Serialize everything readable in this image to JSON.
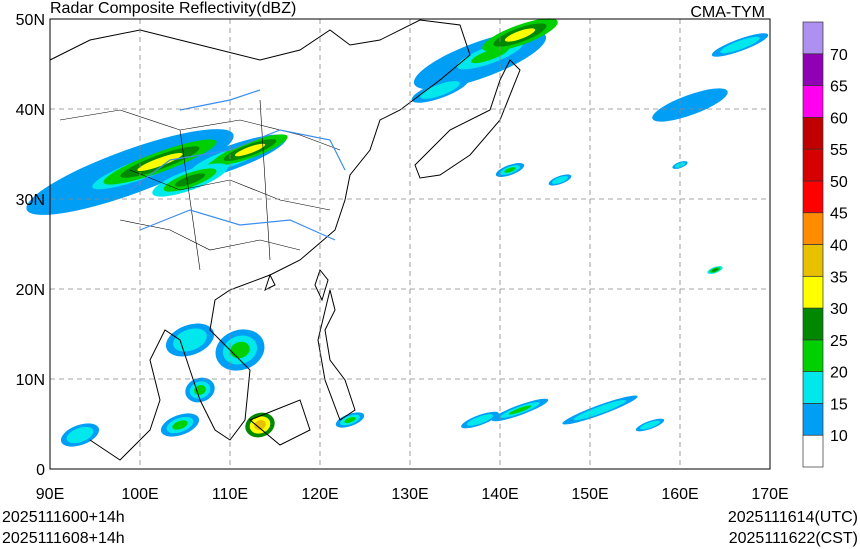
{
  "title": "Radar Composite Reflectivity(dBZ)",
  "model": "CMA-TYM",
  "time_left": [
    "2025111600+14h",
    "2025111608+14h"
  ],
  "time_right": [
    "2025111614(UTC)",
    "2025111622(CST)"
  ],
  "map": {
    "lon_range": [
      90,
      170
    ],
    "lat_range": [
      0,
      50
    ],
    "lon_ticks": [
      "90E",
      "100E",
      "110E",
      "120E",
      "130E",
      "140E",
      "150E",
      "160E",
      "170E"
    ],
    "lat_ticks": [
      "0",
      "10N",
      "20N",
      "30N",
      "40N",
      "50N"
    ]
  },
  "colorbar": {
    "labels": [
      "10",
      "15",
      "20",
      "25",
      "30",
      "35",
      "40",
      "45",
      "50",
      "55",
      "60",
      "65",
      "70"
    ],
    "colors": [
      "#ffffff",
      "#009ef5",
      "#00e8ec",
      "#00d000",
      "#008800",
      "#ffff00",
      "#e8c000",
      "#ff8c00",
      "#ff0000",
      "#d60000",
      "#c00000",
      "#ff00f0",
      "#9000b4",
      "#ad90f0"
    ]
  }
}
